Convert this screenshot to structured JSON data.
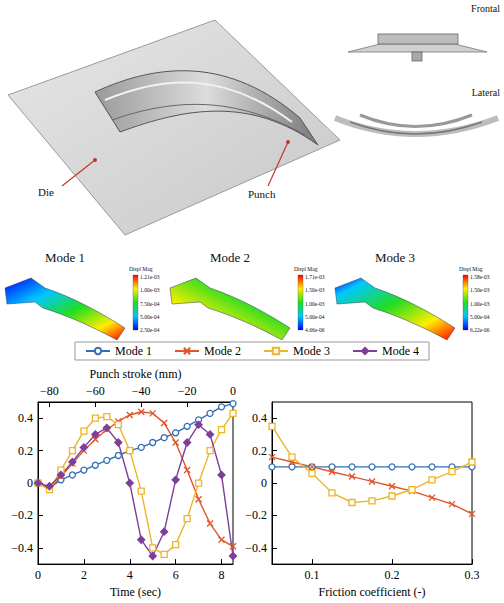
{
  "illustration": {
    "labels": {
      "die": "Die",
      "punch": "Punch",
      "frontal": "Frontal",
      "lateral": "Lateral"
    },
    "modes": [
      {
        "title": "Mode 1",
        "colorbar": {
          "title": "Displ Mag",
          "labels": [
            "1.21e-03",
            "1.00e-03",
            "7.50e-04",
            "5.00e-04",
            "2.50e-04"
          ]
        }
      },
      {
        "title": "Mode 2",
        "colorbar": {
          "title": "Displ Mag",
          "labels": [
            "1.71e-03",
            "1.50e-03",
            "1.00e-03",
            "5.00e-04",
            "4.66e-06"
          ]
        }
      },
      {
        "title": "Mode 3",
        "colorbar": {
          "title": "Displ Mag",
          "labels": [
            "1.58e-03",
            "1.50e-03",
            "1.00e-03",
            "5.00e-04",
            "6.22e-06"
          ]
        }
      }
    ]
  },
  "chart_data": [
    {
      "type": "line",
      "xlabel": "Time (sec)",
      "xlim": [
        0,
        8.5
      ],
      "xticks": [
        0,
        2,
        4,
        6,
        8
      ],
      "x2label": "Punch stroke (mm)",
      "x2lim": [
        -85,
        0
      ],
      "x2ticks": [
        {
          "value": -80,
          "label": "−80"
        },
        {
          "value": -60,
          "label": "−60"
        },
        {
          "value": -40,
          "label": "−40"
        },
        {
          "value": -20,
          "label": "−20"
        },
        0
      ],
      "ylim": [
        -0.5,
        0.5
      ],
      "yticks": [
        {
          "value": -0.4,
          "label": "−0.4"
        },
        {
          "value": -0.2,
          "label": "−0.2"
        },
        0,
        0.2,
        0.4
      ],
      "grid": false,
      "legend": "top",
      "x": [
        0,
        0.5,
        1,
        1.5,
        2,
        2.5,
        3,
        3.5,
        4,
        4.5,
        5,
        5.5,
        6,
        6.5,
        7,
        7.5,
        8,
        8.5
      ],
      "series": [
        {
          "name": "Mode 1",
          "color": "#2f6fb5",
          "marker": "circle",
          "values": [
            0,
            -0.03,
            0.02,
            0.05,
            0.08,
            0.11,
            0.14,
            0.17,
            0.2,
            0.22,
            0.25,
            0.28,
            0.31,
            0.35,
            0.39,
            0.43,
            0.47,
            0.49
          ]
        },
        {
          "name": "Mode 2",
          "color": "#e0552b",
          "marker": "cross",
          "values": [
            0,
            -0.04,
            0.04,
            0.12,
            0.2,
            0.27,
            0.33,
            0.38,
            0.42,
            0.44,
            0.43,
            0.37,
            0.25,
            0.08,
            -0.1,
            -0.25,
            -0.35,
            -0.39
          ]
        },
        {
          "name": "Mode 3",
          "color": "#f0b429",
          "marker": "square",
          "values": [
            0,
            -0.04,
            0.08,
            0.2,
            0.32,
            0.4,
            0.41,
            0.36,
            0.2,
            -0.05,
            -0.4,
            -0.44,
            -0.38,
            -0.22,
            0,
            0.2,
            0.33,
            0.43
          ]
        },
        {
          "name": "Mode 4",
          "color": "#7e3f98",
          "marker": "diamond",
          "values": [
            0,
            -0.02,
            0.05,
            0.13,
            0.22,
            0.3,
            0.34,
            0.25,
            0,
            -0.35,
            -0.45,
            -0.3,
            0.02,
            0.25,
            0.36,
            0.3,
            0.05,
            -0.45
          ]
        }
      ]
    },
    {
      "type": "line",
      "xlabel": "Friction coefficient (-)",
      "xlim": [
        0.05,
        0.3
      ],
      "xticks": [
        0.1,
        0.2,
        0.3
      ],
      "ylim": [
        -0.5,
        0.5
      ],
      "yticks": [
        {
          "value": -0.4,
          "label": "−0.4"
        },
        {
          "value": -0.2,
          "label": "−0.2"
        },
        0,
        0.2,
        0.4
      ],
      "grid": false,
      "x": [
        0.05,
        0.075,
        0.1,
        0.125,
        0.15,
        0.175,
        0.2,
        0.225,
        0.25,
        0.275,
        0.3
      ],
      "series": [
        {
          "name": "Mode 1",
          "color": "#2f6fb5",
          "marker": "circle",
          "values": [
            0.1,
            0.1,
            0.1,
            0.1,
            0.1,
            0.1,
            0.1,
            0.1,
            0.1,
            0.1,
            0.1
          ]
        },
        {
          "name": "Mode 2",
          "color": "#e0552b",
          "marker": "cross",
          "values": [
            0.16,
            0.13,
            0.1,
            0.07,
            0.04,
            0.01,
            -0.02,
            -0.05,
            -0.09,
            -0.13,
            -0.19
          ]
        },
        {
          "name": "Mode 3",
          "color": "#f0b429",
          "marker": "square",
          "values": [
            0.35,
            0.16,
            0.06,
            -0.06,
            -0.12,
            -0.11,
            -0.08,
            -0.04,
            0.02,
            0.07,
            0.13
          ]
        }
      ]
    }
  ]
}
